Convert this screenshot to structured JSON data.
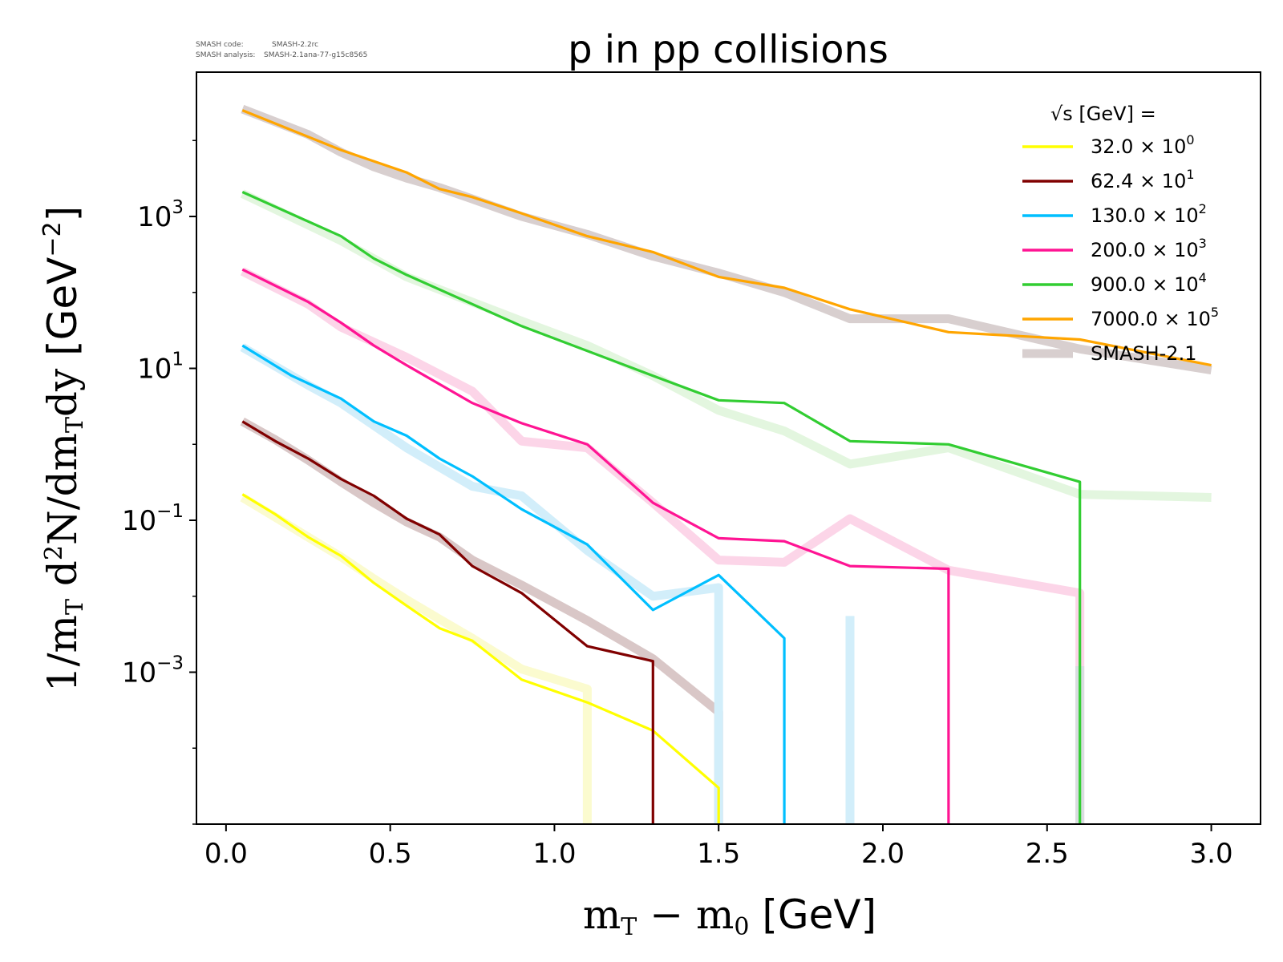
{
  "meta": {
    "code_label": "SMASH code:",
    "code_value": "SMASH-2.2rc",
    "analysis_label": "SMASH analysis:",
    "analysis_value": "SMASH-2.1ana-77-g15c8565"
  },
  "chart_data": {
    "type": "line",
    "title": "p in pp collisions",
    "xlabel": "m_T − m_0 [GeV]",
    "ylabel": "1/m_T d²N/dm_T dy [GeV⁻²]",
    "xlim": [
      -0.09,
      3.15
    ],
    "ylim_log10": [
      -5,
      4.9
    ],
    "y_scale": "log",
    "grid": false,
    "legend_position": "top-right",
    "legend_title": "√s [GeV] =",
    "x_ticks": [
      0.0,
      0.5,
      1.0,
      1.5,
      2.0,
      2.5,
      3.0
    ],
    "x_tick_labels": [
      "0.0",
      "0.5",
      "1.0",
      "1.5",
      "2.0",
      "2.5",
      "3.0"
    ],
    "y_ticks": [
      {
        "base": "10",
        "exp": "3",
        "log": 3
      },
      {
        "base": "10",
        "exp": "1",
        "log": 1
      },
      {
        "base": "10",
        "exp": "−1",
        "log": -1
      },
      {
        "base": "10",
        "exp": "−3",
        "log": -3
      }
    ],
    "series": [
      {
        "name": "32.0 × 10⁰",
        "mantissa": "32.0",
        "exponent": "0",
        "color": "#ffff00",
        "x": [
          0.05,
          0.15,
          0.25,
          0.35,
          0.45,
          0.55,
          0.65,
          0.75,
          0.9,
          1.1,
          1.3,
          1.5,
          1.5
        ],
        "y": [
          0.22,
          0.12,
          0.06,
          0.034,
          0.015,
          0.0075,
          0.0038,
          0.0026,
          0.0008,
          0.0004,
          0.00017,
          3e-05,
          1e-05
        ]
      },
      {
        "name": "62.4 × 10¹",
        "mantissa": "62.4",
        "exponent": "1",
        "color": "#800000",
        "x": [
          0.05,
          0.15,
          0.25,
          0.35,
          0.45,
          0.55,
          0.65,
          0.75,
          0.9,
          1.1,
          1.3,
          1.3
        ],
        "y": [
          2.0,
          1.1,
          0.65,
          0.35,
          0.21,
          0.105,
          0.065,
          0.025,
          0.011,
          0.0022,
          0.0014,
          1e-05
        ]
      },
      {
        "name": "130.0 × 10²",
        "mantissa": "130.0",
        "exponent": "2",
        "color": "#00bfff",
        "x": [
          0.05,
          0.2,
          0.35,
          0.45,
          0.55,
          0.65,
          0.75,
          0.9,
          1.1,
          1.3,
          1.5,
          1.7,
          1.7
        ],
        "y": [
          20,
          8,
          4,
          2.0,
          1.3,
          0.65,
          0.38,
          0.14,
          0.048,
          0.0066,
          0.019,
          0.0028,
          1e-05
        ]
      },
      {
        "name": "200.0 × 10³",
        "mantissa": "200.0",
        "exponent": "3",
        "color": "#ff1493",
        "x": [
          0.05,
          0.25,
          0.35,
          0.45,
          0.55,
          0.75,
          0.9,
          1.1,
          1.3,
          1.5,
          1.7,
          1.9,
          2.2,
          2.2
        ],
        "y": [
          200,
          75,
          40,
          20,
          11,
          3.5,
          1.9,
          1.0,
          0.17,
          0.058,
          0.053,
          0.025,
          0.023,
          1e-05
        ]
      },
      {
        "name": "900.0 × 10⁴",
        "mantissa": "900.0",
        "exponent": "4",
        "color": "#32cd32",
        "x": [
          0.05,
          0.35,
          0.45,
          0.55,
          0.9,
          1.3,
          1.5,
          1.7,
          1.9,
          2.2,
          2.6,
          2.6
        ],
        "y": [
          2100,
          550,
          280,
          170,
          36,
          8,
          3.8,
          3.5,
          1.1,
          1.0,
          0.32,
          1e-05
        ]
      },
      {
        "name": "7000.0 × 10⁵",
        "mantissa": "7000.0",
        "exponent": "5",
        "color": "#ffa500",
        "x": [
          0.05,
          0.35,
          0.55,
          0.65,
          0.75,
          0.9,
          1.1,
          1.3,
          1.5,
          1.7,
          1.9,
          2.2,
          2.6,
          3.0
        ],
        "y": [
          25000,
          7500,
          3800,
          2300,
          1800,
          1100,
          550,
          340,
          160,
          115,
          60,
          30,
          24,
          11
        ]
      }
    ],
    "reference": {
      "name": "SMASH-2.1",
      "color": "#d8cfcf",
      "curves": [
        {
          "color": "#fbfbcf",
          "x": [
            0.05,
            0.15,
            0.25,
            0.35,
            0.45,
            0.55,
            0.65,
            0.75,
            0.9,
            1.1,
            1.1,
            1.1
          ],
          "y": [
            0.2,
            0.11,
            0.06,
            0.033,
            0.017,
            0.009,
            0.005,
            0.0028,
            0.0011,
            0.0006,
            0.0003,
            1e-05
          ]
        },
        {
          "color": "#d9c7c7",
          "x": [
            0.05,
            0.15,
            0.25,
            0.35,
            0.45,
            0.55,
            0.65,
            0.75,
            0.9,
            1.1,
            1.3,
            1.5,
            1.5,
            1.5
          ],
          "y": [
            2.0,
            1.15,
            0.62,
            0.32,
            0.17,
            0.095,
            0.06,
            0.03,
            0.014,
            0.0048,
            0.0015,
            0.0003,
            3e-05,
            1e-05
          ]
        },
        {
          "color": "#d2eefa",
          "x": [
            0.05,
            0.25,
            0.35,
            0.55,
            0.75,
            0.9,
            1.1,
            1.3,
            1.5,
            1.5,
            1.5
          ],
          "y": [
            19,
            6,
            3.5,
            0.9,
            0.28,
            0.21,
            0.04,
            0.01,
            0.013,
            0.0005,
            1e-05
          ]
        },
        {
          "color": "#fcd5e8",
          "x": [
            0.05,
            0.25,
            0.35,
            0.55,
            0.75,
            0.9,
            1.1,
            1.3,
            1.5,
            1.7,
            1.9,
            2.2,
            2.6,
            2.6
          ],
          "y": [
            190,
            70,
            35,
            14,
            5,
            1.1,
            0.9,
            0.17,
            0.03,
            0.028,
            0.105,
            0.022,
            0.011,
            1e-05
          ]
        },
        {
          "color": "#e3f6df",
          "x": [
            0.05,
            0.35,
            0.55,
            0.9,
            1.1,
            1.3,
            1.5,
            1.7,
            1.9,
            2.2,
            2.6,
            3.0
          ],
          "y": [
            2000,
            480,
            160,
            42,
            20,
            8,
            2.8,
            1.5,
            0.55,
            0.9,
            0.22,
            0.2
          ]
        },
        {
          "color": "#d8cfcf",
          "x": [
            0.05,
            0.25,
            0.35,
            0.45,
            0.55,
            0.65,
            0.75,
            0.9,
            1.1,
            1.3,
            1.5,
            1.7,
            1.9,
            2.2,
            2.6,
            3.0
          ],
          "y": [
            26000,
            12000,
            7000,
            4500,
            3200,
            2400,
            1700,
            1000,
            580,
            300,
            180,
            100,
            45,
            45,
            18,
            9.5
          ]
        },
        {
          "color": "#d9dde0",
          "x": [
            1.9,
            1.9
          ],
          "y": [
            0.00025,
            1e-05
          ]
        },
        {
          "color": "#d2eefa",
          "x": [
            1.9,
            1.9
          ],
          "y": [
            0.0055,
            1e-05
          ]
        },
        {
          "color": "#d9dde0",
          "x": [
            2.6,
            2.6
          ],
          "y": [
            0.0012,
            1e-05
          ]
        }
      ]
    }
  }
}
